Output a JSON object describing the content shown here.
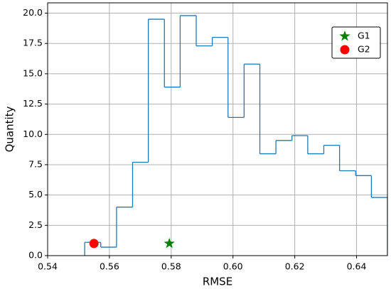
{
  "chart_data": {
    "type": "histogram",
    "xlabel": "RMSE",
    "ylabel": "Quantity",
    "color": "#1f77b4",
    "bins": [
      0.552,
      0.5572,
      0.5623,
      0.5675,
      0.5726,
      0.5778,
      0.5829,
      0.5881,
      0.5933,
      0.5984,
      0.6036,
      0.6087,
      0.6139,
      0.6191,
      0.6242,
      0.6294,
      0.6345,
      0.6397,
      0.6448,
      0.65
    ],
    "values": [
      1.1,
      0.7,
      4.0,
      7.7,
      19.5,
      13.9,
      19.8,
      17.3,
      18.0,
      11.4,
      15.8,
      8.4,
      9.5,
      9.9,
      8.4,
      9.1,
      7.0,
      6.6,
      4.8
    ],
    "points": [
      {
        "name": "G1",
        "color": "green",
        "marker": "star",
        "x": 0.5794,
        "y": 1.0
      },
      {
        "name": "G2",
        "color": "red",
        "marker": "circle",
        "x": 0.555,
        "y": 1.0
      }
    ],
    "xlim": [
      0.54,
      0.65
    ],
    "xticks": [
      0.54,
      0.56,
      0.58,
      0.6,
      0.62,
      0.64
    ],
    "ylim": [
      0,
      20.85
    ],
    "yticks": [
      {
        "value": 0,
        "label": "0.0"
      },
      2.5,
      {
        "value": 5,
        "label": "5.0"
      },
      7.5,
      {
        "value": 10,
        "label": "10.0"
      },
      12.5,
      {
        "value": 15,
        "label": "15.0"
      },
      17.5,
      {
        "value": 20,
        "label": "20.0"
      }
    ],
    "xtick_labels": [
      "0.54",
      "0.56",
      "0.58",
      "0.60",
      "0.62",
      "0.64"
    ],
    "grid": true,
    "legend": "upper right"
  }
}
